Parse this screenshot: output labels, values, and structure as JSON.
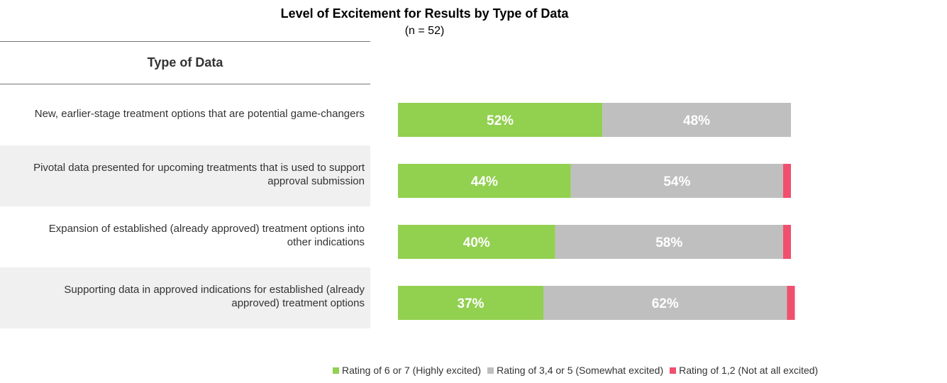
{
  "title": "Level of Excitement for Results by Type of Data",
  "subtitle": "(n = 52)",
  "column_header": "Type of Data",
  "chart_data": {
    "type": "bar",
    "orientation": "horizontal",
    "stacked": true,
    "value_unit": "%",
    "categories": [
      "New, earlier-stage treatment options that are potential game-changers",
      "Pivotal data presented for upcoming treatments that is used to support approval submission",
      "Expansion of established (already approved) treatment options into other indications",
      "Supporting data in approved indications for established (already approved) treatment options"
    ],
    "category_lines": [
      [
        "New, earlier-stage treatment options that are potential game-changers"
      ],
      [
        "Pivotal data presented for upcoming treatments that is used to support",
        "approval submission"
      ],
      [
        "Expansion of established (already approved) treatment options into",
        "other indications"
      ],
      [
        "Supporting data in approved indications for established (already",
        "approved) treatment options"
      ]
    ],
    "series": [
      {
        "name": "Rating of 6 or 7 (Highly excited)",
        "color": "#92d050",
        "values": [
          52,
          44,
          40,
          37
        ],
        "show_labels": true
      },
      {
        "name": "Rating of 3,4 or 5 (Somewhat excited)",
        "color": "#bfbfbf",
        "values": [
          48,
          54,
          58,
          62
        ],
        "show_labels": true
      },
      {
        "name": "Rating of 1,2 (Not at all excited)",
        "color": "#f0506e",
        "values": [
          0,
          2,
          2,
          2
        ],
        "show_labels": false
      }
    ],
    "xlim": [
      0,
      100
    ],
    "legend_position": "bottom",
    "grid": false
  }
}
